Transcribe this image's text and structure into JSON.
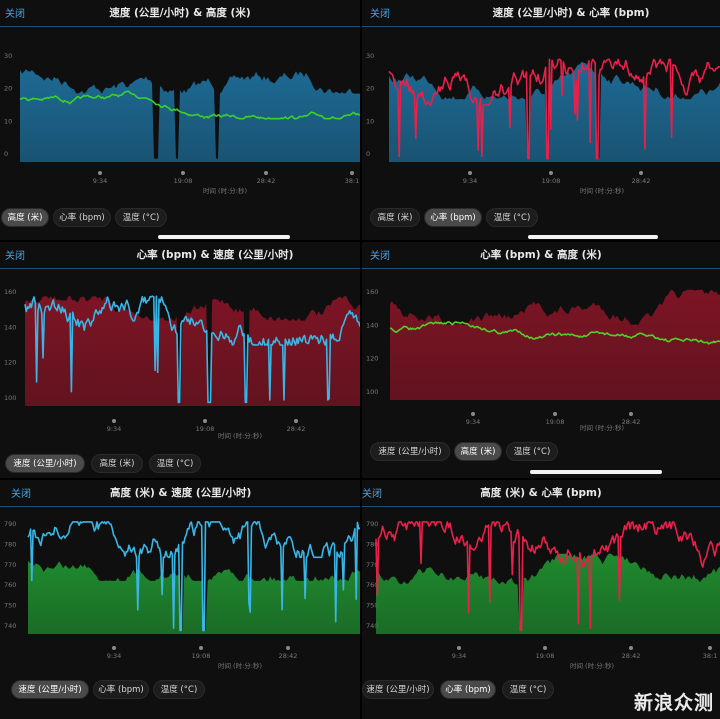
{
  "watermark": "新浪众测",
  "panels": [
    {
      "id": "p1",
      "close": "关闭",
      "title": "速度 (公里/小时) & 高度 (米)",
      "time_axis_label": "时间 (时:分:秒)",
      "buttons": [
        {
          "label": "高度 (米)",
          "active": true
        },
        {
          "label": "心率 (bpm)",
          "active": false
        },
        {
          "label": "温度 (°C)",
          "active": false
        }
      ],
      "chart_data": {
        "type": "area",
        "x_ticks": [
          "9:34",
          "19:08",
          "28:42",
          "38:1"
        ],
        "y_ticks": [
          "30",
          "20",
          "10",
          "0"
        ],
        "area_series": {
          "color": "#1d6a94"
        },
        "line_series": {
          "color": "#3cd12a"
        }
      }
    },
    {
      "id": "p2",
      "close": "关闭",
      "title": "速度 (公里/小时) & 心率 (bpm)",
      "time_axis_label": "时间 (时:分:秒)",
      "buttons": [
        {
          "label": "高度 (米)",
          "active": false
        },
        {
          "label": "心率 (bpm)",
          "active": true
        },
        {
          "label": "温度 (°C)",
          "active": false
        }
      ],
      "chart_data": {
        "type": "area",
        "x_ticks": [
          "9:34",
          "19:08",
          "28:42"
        ],
        "y_ticks": [
          "30",
          "20",
          "10",
          "0"
        ],
        "area_series": {
          "color": "#1d6a94"
        },
        "line_series": {
          "color": "#e8204a"
        }
      }
    },
    {
      "id": "p3",
      "close": "关闭",
      "title": "心率 (bpm) & 速度 (公里/小时)",
      "time_axis_label": "时间 (时:分:秒)",
      "buttons": [
        {
          "label": "速度 (公里/小时)",
          "active": true
        },
        {
          "label": "高度 (米)",
          "active": false
        },
        {
          "label": "温度 (°C)",
          "active": false
        }
      ],
      "chart_data": {
        "type": "area",
        "x_ticks": [
          "9:34",
          "19:08",
          "28:42"
        ],
        "y_ticks": [
          "160",
          "140",
          "120",
          "100"
        ],
        "area_series": {
          "color": "#7d1424"
        },
        "line_series": {
          "color": "#3ab6e6"
        }
      }
    },
    {
      "id": "p4",
      "close": "关闭",
      "title": "心率 (bpm) & 高度 (米)",
      "time_axis_label": "时间 (时:分:秒)",
      "buttons": [
        {
          "label": "速度 (公里/小时)",
          "active": false
        },
        {
          "label": "高度 (米)",
          "active": true
        },
        {
          "label": "温度 (°C)",
          "active": false
        }
      ],
      "chart_data": {
        "type": "area",
        "x_ticks": [
          "9:34",
          "19:08",
          "28:42"
        ],
        "y_ticks": [
          "160",
          "140",
          "120",
          "100"
        ],
        "area_series": {
          "color": "#7d1424"
        },
        "line_series": {
          "color": "#4fd12a"
        }
      }
    },
    {
      "id": "p5",
      "close": "关闭",
      "title": "高度 (米) & 速度 (公里/小时)",
      "time_axis_label": "时间 (时:分:秒)",
      "buttons": [
        {
          "label": "速度 (公里/小时)",
          "active": true
        },
        {
          "label": "心率 (bpm)",
          "active": false
        },
        {
          "label": "温度 (°C)",
          "active": false
        }
      ],
      "chart_data": {
        "type": "area",
        "x_ticks": [
          "9:34",
          "19:08",
          "28:42"
        ],
        "y_ticks": [
          "790",
          "780",
          "770",
          "760",
          "750",
          "740"
        ],
        "area_series": {
          "color": "#1f8a2e"
        },
        "line_series": {
          "color": "#3ab6e6"
        }
      }
    },
    {
      "id": "p6",
      "close": "关闭",
      "title": "高度 (米) & 心率 (bpm)",
      "time_axis_label": "时间 (时:分:秒)",
      "buttons": [
        {
          "label": "速度 (公里/小时)",
          "active": false
        },
        {
          "label": "心率 (bpm)",
          "active": true
        },
        {
          "label": "温度 (°C)",
          "active": false
        }
      ],
      "chart_data": {
        "type": "area",
        "x_ticks": [
          "9:34",
          "19:08",
          "28:42",
          "38:1"
        ],
        "y_ticks": [
          "790",
          "780",
          "770",
          "760",
          "750",
          "740"
        ],
        "area_series": {
          "color": "#1f8a2e"
        },
        "line_series": {
          "color": "#e8204a"
        }
      }
    }
  ]
}
